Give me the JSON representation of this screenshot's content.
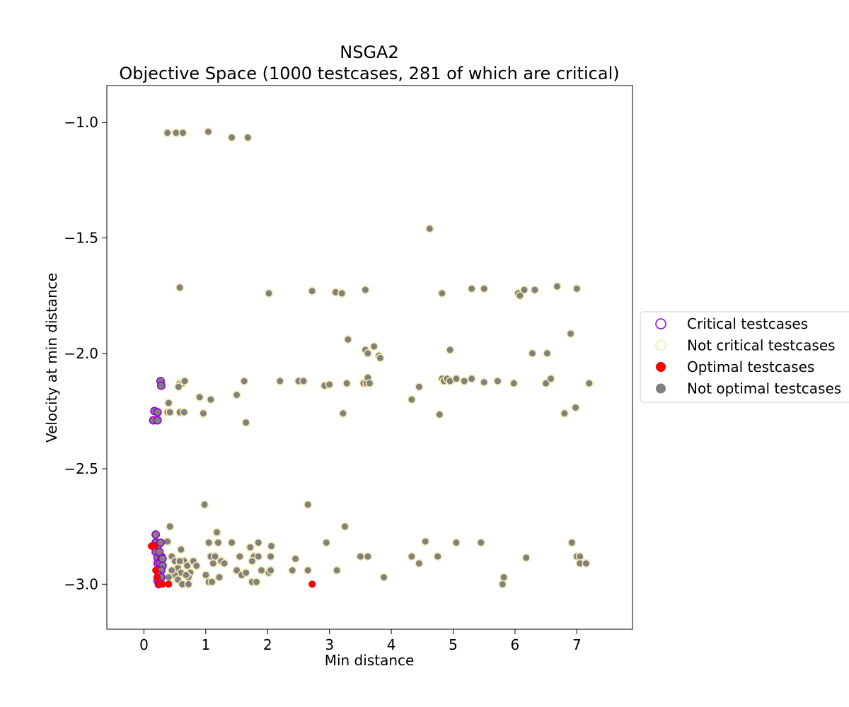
{
  "chart_data": {
    "type": "scatter",
    "title": "NSGA2",
    "subtitle": "Objective Space (1000 testcases, 281 of which are critical)",
    "xlabel": "Min distance",
    "ylabel": "Velocity at min distance",
    "xlim": [
      -0.6,
      7.9
    ],
    "ylim": [
      -3.195,
      -0.84
    ],
    "x_ticks": [
      0,
      1,
      2,
      3,
      4,
      5,
      6,
      7
    ],
    "x_tick_labels": [
      "0",
      "1",
      "2",
      "3",
      "4",
      "5",
      "6",
      "7"
    ],
    "y_ticks": [
      -1.0,
      -1.5,
      -2.0,
      -2.5,
      -3.0
    ],
    "y_tick_labels": [
      "−1.0",
      "−1.5",
      "−2.0",
      "−2.5",
      "−3.0"
    ],
    "grid": false,
    "legend_position": "outside-right",
    "legend": [
      {
        "label": "Critical testcases",
        "marker": "hollow",
        "color": "#9400d3"
      },
      {
        "label": "Not critical testcases",
        "marker": "hollow",
        "color": "#f5e6a8"
      },
      {
        "label": "Optimal testcases",
        "marker": "filled",
        "color": "#ff0000"
      },
      {
        "label": "Not optimal testcases",
        "marker": "filled",
        "color": "#808080"
      }
    ],
    "series": [
      {
        "name": "Not critical testcases",
        "edge_color": "#f5e6a8",
        "fill_color": "#808080",
        "points": [
          [
            0.38,
            -1.045
          ],
          [
            0.52,
            -1.045
          ],
          [
            0.63,
            -1.045
          ],
          [
            1.04,
            -1.04
          ],
          [
            1.42,
            -1.065
          ],
          [
            1.68,
            -1.065
          ],
          [
            4.62,
            -1.46
          ],
          [
            0.58,
            -1.715
          ],
          [
            2.02,
            -1.74
          ],
          [
            2.72,
            -1.73
          ],
          [
            3.1,
            -1.735
          ],
          [
            3.2,
            -1.74
          ],
          [
            3.58,
            -1.725
          ],
          [
            4.82,
            -1.74
          ],
          [
            5.3,
            -1.72
          ],
          [
            5.5,
            -1.72
          ],
          [
            6.05,
            -1.74
          ],
          [
            6.08,
            -1.75
          ],
          [
            6.15,
            -1.725
          ],
          [
            6.32,
            -1.725
          ],
          [
            6.68,
            -1.71
          ],
          [
            7.0,
            -1.72
          ],
          [
            6.9,
            -1.915
          ],
          [
            3.3,
            -1.94
          ],
          [
            3.58,
            -1.985
          ],
          [
            3.62,
            -2.0
          ],
          [
            3.72,
            -1.97
          ],
          [
            3.8,
            -2.01
          ],
          [
            3.82,
            -2.02
          ],
          [
            4.95,
            -1.985
          ],
          [
            6.28,
            -2.0
          ],
          [
            6.52,
            -2.0
          ],
          [
            0.58,
            -2.13
          ],
          [
            0.62,
            -2.13
          ],
          [
            0.66,
            -2.12
          ],
          [
            0.56,
            -2.145
          ],
          [
            0.4,
            -2.215
          ],
          [
            0.38,
            -2.255
          ],
          [
            0.42,
            -2.255
          ],
          [
            0.58,
            -2.255
          ],
          [
            0.65,
            -2.255
          ],
          [
            0.9,
            -2.19
          ],
          [
            1.08,
            -2.2
          ],
          [
            0.96,
            -2.26
          ],
          [
            1.5,
            -2.18
          ],
          [
            1.62,
            -2.12
          ],
          [
            2.2,
            -2.12
          ],
          [
            2.5,
            -2.12
          ],
          [
            2.58,
            -2.12
          ],
          [
            2.92,
            -2.14
          ],
          [
            3.0,
            -2.135
          ],
          [
            3.28,
            -2.13
          ],
          [
            3.55,
            -2.13
          ],
          [
            3.6,
            -2.13
          ],
          [
            3.62,
            -2.105
          ],
          [
            3.65,
            -2.13
          ],
          [
            1.65,
            -2.3
          ],
          [
            3.22,
            -2.26
          ],
          [
            4.33,
            -2.2
          ],
          [
            4.45,
            -2.145
          ],
          [
            4.78,
            -2.265
          ],
          [
            4.82,
            -2.11
          ],
          [
            4.85,
            -2.12
          ],
          [
            4.9,
            -2.11
          ],
          [
            4.95,
            -2.12
          ],
          [
            5.05,
            -2.11
          ],
          [
            5.18,
            -2.12
          ],
          [
            5.3,
            -2.11
          ],
          [
            5.5,
            -2.125
          ],
          [
            5.72,
            -2.12
          ],
          [
            5.98,
            -2.13
          ],
          [
            6.5,
            -2.13
          ],
          [
            6.58,
            -2.11
          ],
          [
            6.8,
            -2.26
          ],
          [
            6.98,
            -2.235
          ],
          [
            7.2,
            -2.13
          ],
          [
            0.98,
            -2.655
          ],
          [
            2.65,
            -2.655
          ],
          [
            3.25,
            -2.75
          ],
          [
            0.42,
            -2.75
          ],
          [
            0.38,
            -2.815
          ],
          [
            0.45,
            -2.88
          ],
          [
            0.5,
            -2.9
          ],
          [
            0.55,
            -2.93
          ],
          [
            0.6,
            -2.95
          ],
          [
            0.65,
            -2.9
          ],
          [
            0.7,
            -2.92
          ],
          [
            0.75,
            -2.95
          ],
          [
            0.8,
            -2.9
          ],
          [
            0.85,
            -2.92
          ],
          [
            0.5,
            -2.96
          ],
          [
            0.55,
            -2.98
          ],
          [
            0.62,
            -3.0
          ],
          [
            0.72,
            -2.97
          ],
          [
            0.45,
            -2.94
          ],
          [
            0.4,
            -2.97
          ],
          [
            0.58,
            -2.9
          ],
          [
            0.68,
            -2.96
          ],
          [
            1.05,
            -2.82
          ],
          [
            1.2,
            -2.82
          ],
          [
            1.18,
            -2.775
          ],
          [
            1.08,
            -2.88
          ],
          [
            1.15,
            -2.88
          ],
          [
            1.25,
            -2.9
          ],
          [
            1.12,
            -2.91
          ],
          [
            1.0,
            -2.96
          ],
          [
            1.05,
            -2.99
          ],
          [
            1.1,
            -2.99
          ],
          [
            1.22,
            -2.97
          ],
          [
            1.3,
            -2.91
          ],
          [
            1.42,
            -2.82
          ],
          [
            1.5,
            -2.94
          ],
          [
            1.55,
            -2.88
          ],
          [
            1.58,
            -2.96
          ],
          [
            1.65,
            -2.95
          ],
          [
            1.72,
            -2.84
          ],
          [
            1.78,
            -2.88
          ],
          [
            1.85,
            -2.82
          ],
          [
            1.75,
            -2.99
          ],
          [
            1.82,
            -2.99
          ],
          [
            1.85,
            -2.88
          ],
          [
            1.9,
            -2.94
          ],
          [
            1.75,
            -2.9
          ],
          [
            2.02,
            -2.95
          ],
          [
            2.05,
            -2.94
          ],
          [
            2.05,
            -2.88
          ],
          [
            2.06,
            -2.835
          ],
          [
            2.4,
            -2.94
          ],
          [
            2.45,
            -2.89
          ],
          [
            2.65,
            -2.94
          ],
          [
            2.95,
            -2.82
          ],
          [
            3.12,
            -2.94
          ],
          [
            3.5,
            -2.88
          ],
          [
            3.62,
            -2.88
          ],
          [
            3.88,
            -2.97
          ],
          [
            4.33,
            -2.88
          ],
          [
            4.45,
            -2.91
          ],
          [
            4.55,
            -2.815
          ],
          [
            4.75,
            -2.88
          ],
          [
            5.05,
            -2.82
          ],
          [
            5.45,
            -2.82
          ],
          [
            5.8,
            -3.0
          ],
          [
            5.82,
            -2.97
          ],
          [
            6.18,
            -2.885
          ],
          [
            6.92,
            -2.82
          ],
          [
            7.0,
            -2.88
          ],
          [
            7.05,
            -2.88
          ],
          [
            7.05,
            -2.91
          ],
          [
            7.15,
            -2.91
          ],
          [
            0.72,
            -3.0
          ],
          [
            0.6,
            -2.85
          ]
        ]
      },
      {
        "name": "Critical testcases",
        "edge_color": "#9400d3",
        "fill_color": "#808080",
        "points": [
          [
            0.27,
            -2.12
          ],
          [
            0.28,
            -2.14
          ],
          [
            0.17,
            -2.25
          ],
          [
            0.22,
            -2.255
          ],
          [
            0.15,
            -2.29
          ],
          [
            0.22,
            -2.29
          ],
          [
            0.19,
            -2.785
          ],
          [
            0.19,
            -2.82
          ],
          [
            0.15,
            -2.835
          ],
          [
            0.22,
            -2.835
          ],
          [
            0.27,
            -2.82
          ],
          [
            0.19,
            -2.86
          ],
          [
            0.22,
            -2.885
          ],
          [
            0.28,
            -2.88
          ],
          [
            0.22,
            -2.91
          ],
          [
            0.26,
            -2.91
          ],
          [
            0.3,
            -2.89
          ],
          [
            0.3,
            -2.92
          ],
          [
            0.22,
            -2.94
          ],
          [
            0.28,
            -2.94
          ],
          [
            0.24,
            -2.96
          ],
          [
            0.28,
            -2.97
          ],
          [
            0.22,
            -2.985
          ],
          [
            0.24,
            -3.0
          ],
          [
            0.25,
            -2.86
          ]
        ]
      },
      {
        "name": "Optimal testcases",
        "edge_color": "#ff0000",
        "fill_color": "#ff0000",
        "points": [
          [
            0.12,
            -2.835
          ],
          [
            0.17,
            -2.835
          ],
          [
            0.19,
            -2.94
          ],
          [
            0.21,
            -2.97
          ],
          [
            0.25,
            -3.0
          ],
          [
            0.3,
            -3.0
          ],
          [
            0.4,
            -3.0
          ],
          [
            2.72,
            -3.0
          ]
        ]
      }
    ]
  }
}
